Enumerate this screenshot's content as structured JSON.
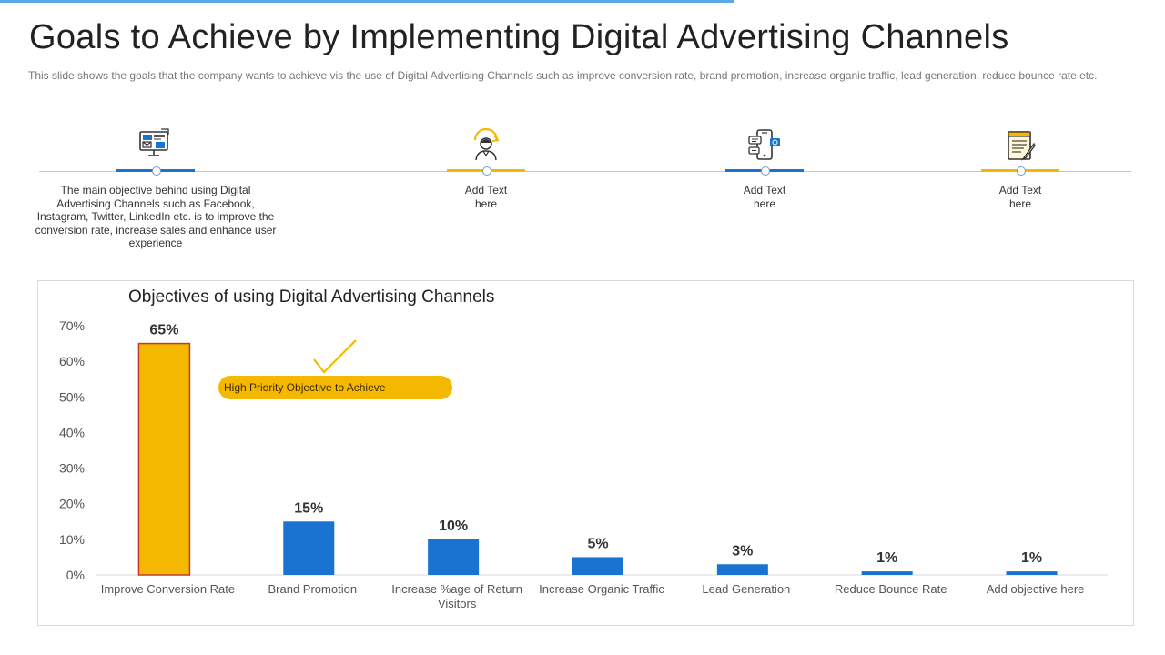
{
  "page": {
    "title": "Goals to Achieve by Implementing Digital Advertising Channels",
    "subtitle": "This slide shows the goals that the company wants to achieve vis the use of Digital Advertising Channels such as improve conversion rate, brand promotion, increase organic traffic, lead generation, reduce bounce rate etc."
  },
  "colors": {
    "blue": "#1a73d0",
    "yellow": "#f5b800",
    "accent_line": "#5aa9e6",
    "highlight_border": "#c0392b"
  },
  "timeline": {
    "steps": [
      {
        "icon": "digital-marketing-icon",
        "text": "The main objective behind using Digital Advertising Channels such as Facebook, Instagram, Twitter, LinkedIn etc. is to improve the conversion rate, increase sales and enhance user experience",
        "color": "#1a73d0"
      },
      {
        "icon": "customer-support-icon",
        "text": "Add Text here",
        "color": "#f5b800"
      },
      {
        "icon": "mobile-messaging-icon",
        "text": "Add Text here",
        "color": "#1a73d0"
      },
      {
        "icon": "notepad-pencil-icon",
        "text": "Add Text here",
        "color": "#f5b800"
      }
    ]
  },
  "callout": {
    "text": "High Priority Objective to Achieve"
  },
  "chart_data": {
    "type": "bar",
    "title": "Objectives of using Digital Advertising Channels",
    "categories": [
      "Improve Conversion Rate",
      "Brand Promotion",
      "Increase %age of Return Visitors",
      "Increase Organic Traffic",
      "Lead Generation",
      "Reduce Bounce Rate",
      "Add objective here"
    ],
    "values": [
      65,
      15,
      10,
      5,
      3,
      1,
      1
    ],
    "data_labels": [
      "65%",
      "15%",
      "10%",
      "5%",
      "3%",
      "1%",
      "1%"
    ],
    "y_ticks": [
      "0%",
      "10%",
      "20%",
      "30%",
      "40%",
      "50%",
      "60%",
      "70%"
    ],
    "ylim": [
      0,
      70
    ],
    "xlabel": "",
    "ylabel": "",
    "grid": false,
    "highlight_index": 0
  }
}
